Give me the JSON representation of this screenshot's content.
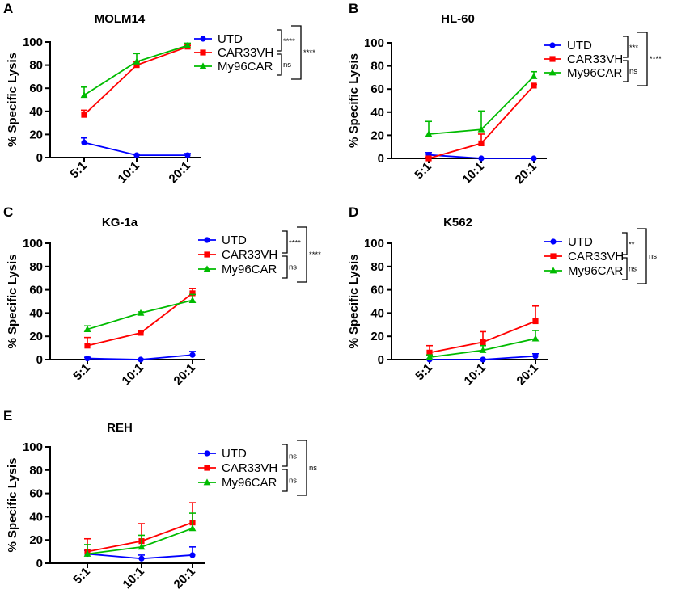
{
  "chart_data": [
    {
      "panel": "A",
      "type": "line",
      "title": "MOLM14",
      "ylabel": "% Specific Lysis",
      "xlabel": "",
      "ylim": [
        0,
        100
      ],
      "yticks": [
        "0",
        "20",
        "40",
        "60",
        "80",
        "100"
      ],
      "categories": [
        "5:1",
        "10:1",
        "20:1"
      ],
      "series": [
        {
          "name": "UTD",
          "color": "#0000ff",
          "marker": "circle",
          "values": [
            13,
            2,
            2
          ],
          "errors": [
            4,
            1,
            1.5
          ]
        },
        {
          "name": "CAR33VH",
          "color": "#ff0000",
          "marker": "square",
          "values": [
            37,
            80,
            96
          ],
          "errors": [
            4,
            3,
            1
          ]
        },
        {
          "name": "My96CAR",
          "color": "#00bb00",
          "marker": "triangle",
          "values": [
            54,
            83,
            97
          ],
          "errors": [
            7,
            7,
            2
          ]
        }
      ],
      "significance": {
        "utd_vs_car33vh": "****",
        "car33vh_vs_my96car": "ns",
        "utd_vs_my96car": "****"
      }
    },
    {
      "panel": "B",
      "type": "line",
      "title": "HL-60",
      "ylabel": "% Specific Lysis",
      "xlabel": "",
      "ylim": [
        0,
        100
      ],
      "yticks": [
        "0",
        "20",
        "40",
        "60",
        "80",
        "100"
      ],
      "categories": [
        "5:1",
        "10:1",
        "20:1"
      ],
      "series": [
        {
          "name": "UTD",
          "color": "#0000ff",
          "marker": "circle",
          "values": [
            3,
            0,
            0
          ],
          "errors": [
            2,
            0,
            0
          ]
        },
        {
          "name": "CAR33VH",
          "color": "#ff0000",
          "marker": "square",
          "values": [
            0,
            13,
            63
          ],
          "errors": [
            1,
            8,
            1
          ]
        },
        {
          "name": "My96CAR",
          "color": "#00bb00",
          "marker": "triangle",
          "values": [
            21,
            25,
            71
          ],
          "errors": [
            11,
            16,
            4
          ]
        }
      ],
      "significance": {
        "utd_vs_car33vh": "***",
        "car33vh_vs_my96car": "ns",
        "utd_vs_my96car": "****"
      }
    },
    {
      "panel": "C",
      "type": "line",
      "title": "KG-1a",
      "ylabel": "% Specific Lysis",
      "xlabel": "",
      "ylim": [
        0,
        100
      ],
      "yticks": [
        "0",
        "20",
        "40",
        "60",
        "80",
        "100"
      ],
      "categories": [
        "5:1",
        "10:1",
        "20:1"
      ],
      "series": [
        {
          "name": "UTD",
          "color": "#0000ff",
          "marker": "circle",
          "values": [
            1,
            0,
            4
          ],
          "errors": [
            1,
            0.5,
            3
          ]
        },
        {
          "name": "CAR33VH",
          "color": "#ff0000",
          "marker": "square",
          "values": [
            12,
            23,
            57
          ],
          "errors": [
            7,
            1,
            4
          ]
        },
        {
          "name": "My96CAR",
          "color": "#00bb00",
          "marker": "triangle",
          "values": [
            26,
            40,
            51
          ],
          "errors": [
            3,
            1,
            5
          ]
        }
      ],
      "significance": {
        "utd_vs_car33vh": "****",
        "car33vh_vs_my96car": "ns",
        "utd_vs_my96car": "****"
      }
    },
    {
      "panel": "D",
      "type": "line",
      "title": "K562",
      "ylabel": "% Specific Lysis",
      "xlabel": "",
      "ylim": [
        0,
        100
      ],
      "yticks": [
        "0",
        "20",
        "40",
        "60",
        "80",
        "100"
      ],
      "categories": [
        "5:1",
        "10:1",
        "20:1"
      ],
      "series": [
        {
          "name": "UTD",
          "color": "#0000ff",
          "marker": "circle",
          "values": [
            0,
            0,
            3
          ],
          "errors": [
            0.5,
            0.5,
            2
          ]
        },
        {
          "name": "CAR33VH",
          "color": "#ff0000",
          "marker": "square",
          "values": [
            6,
            15,
            33
          ],
          "errors": [
            6,
            9,
            13
          ]
        },
        {
          "name": "My96CAR",
          "color": "#00bb00",
          "marker": "triangle",
          "values": [
            2,
            8,
            18
          ],
          "errors": [
            2,
            4,
            7
          ]
        }
      ],
      "significance": {
        "utd_vs_car33vh": "**",
        "car33vh_vs_my96car": "ns",
        "utd_vs_my96car": "ns"
      }
    },
    {
      "panel": "E",
      "type": "line",
      "title": "REH",
      "ylabel": "% Specific Lysis",
      "xlabel": "",
      "ylim": [
        0,
        100
      ],
      "yticks": [
        "0",
        "20",
        "40",
        "60",
        "80",
        "100"
      ],
      "categories": [
        "5:1",
        "10:1",
        "20:1"
      ],
      "series": [
        {
          "name": "UTD",
          "color": "#0000ff",
          "marker": "circle",
          "values": [
            8,
            4,
            7
          ],
          "errors": [
            3,
            3,
            7
          ]
        },
        {
          "name": "CAR33VH",
          "color": "#ff0000",
          "marker": "square",
          "values": [
            10,
            19,
            35
          ],
          "errors": [
            11,
            15,
            17
          ]
        },
        {
          "name": "My96CAR",
          "color": "#00bb00",
          "marker": "triangle",
          "values": [
            8,
            14,
            30
          ],
          "errors": [
            8,
            10,
            13
          ]
        }
      ],
      "significance": {
        "utd_vs_car33vh": "ns",
        "car33vh_vs_my96car": "ns",
        "utd_vs_my96car": "ns"
      }
    }
  ]
}
